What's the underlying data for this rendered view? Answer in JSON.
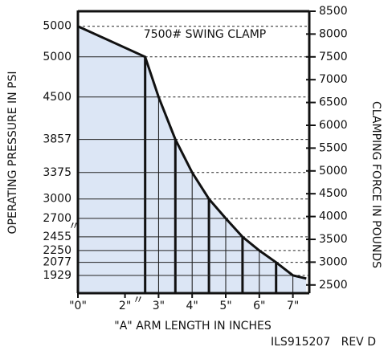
{
  "chart_data": {
    "type": "line",
    "title": "7500# SWING CLAMP",
    "y_label": "OPERATING PRESSURE IN PSI",
    "y2_label": "CLAMPING FORCE IN POUNDS",
    "x_label": "\"A\" ARM LENGTH IN INCHES",
    "footer": "ILS915207   REV D",
    "x": [
      0,
      2.6,
      3,
      3.5,
      4,
      4.5,
      5,
      5.5,
      6,
      6.5,
      7,
      7.4
    ],
    "series": [
      {
        "name": "CLAMPING FORCE",
        "color": "#111111",
        "axis": "y2",
        "values": [
          8170,
          7500,
          6620,
          5690,
          4965,
          4385,
          3960,
          3555,
          3255,
          2995,
          2710,
          2640
        ]
      }
    ],
    "pressure": [
      5000,
      5000,
      4500,
      3857,
      3375,
      3000,
      2700,
      2455,
      2250,
      2077,
      1929,
      null
    ],
    "fill_color": "#dce6f5",
    "xticks": [
      {
        "value": 0,
        "label": "\"0\""
      },
      {
        "value": 2,
        "label": "2\""
      },
      {
        "value": 3,
        "label": "3\""
      },
      {
        "value": 4,
        "label": "4\""
      },
      {
        "value": 5,
        "label": "5\""
      },
      {
        "value": 6,
        "label": "6\""
      },
      {
        "value": 7,
        "label": "7\""
      }
    ],
    "y2lim": [
      2320,
      8500
    ],
    "y2ticks": [
      2500,
      3000,
      3500,
      4000,
      4500,
      5000,
      5500,
      6000,
      6500,
      7000,
      7500,
      8000,
      8500
    ]
  }
}
